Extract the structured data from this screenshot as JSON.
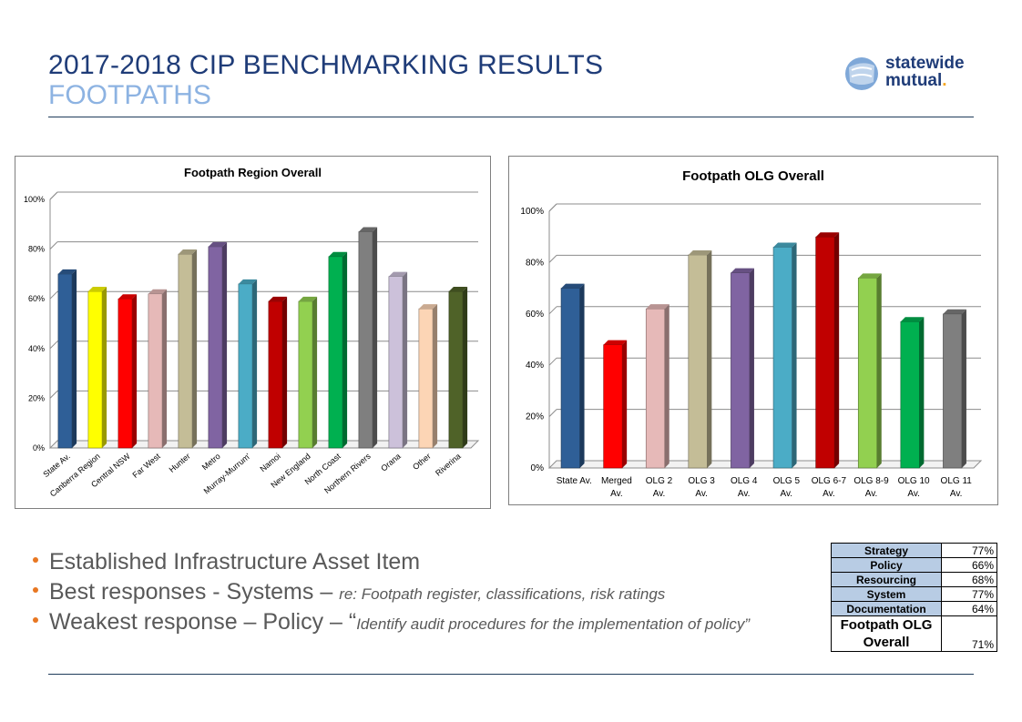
{
  "header": {
    "title_line1": "2017-2018 CIP BENCHMARKING RESULTS",
    "title_line2": "FOOTPATHS",
    "logo_line1": "statewide",
    "logo_line2": "mutual",
    "logo_dot": "."
  },
  "chart_data": [
    {
      "type": "bar",
      "title": "Footpath Region Overall",
      "categories": [
        "State Av.",
        "Canberra Region",
        "Central NSW",
        "Far West",
        "Hunter",
        "Metro",
        "Murray-Murrum'",
        "Namoi",
        "New England",
        "North Coast",
        "Northern Rivers",
        "Orana",
        "Other",
        "Riverina"
      ],
      "values": [
        70,
        63,
        60,
        62,
        78,
        81,
        66,
        59,
        59,
        77,
        87,
        69,
        56,
        63
      ],
      "colors": [
        "#2f5f97",
        "#ffff00",
        "#ff0000",
        "#e6b9b8",
        "#c4bd97",
        "#8064a2",
        "#4bacc6",
        "#c00000",
        "#92d050",
        "#00b050",
        "#7f7f7f",
        "#ccc1da",
        "#fcd5b5",
        "#4f6228"
      ],
      "ylim": [
        0,
        100
      ],
      "yticks": [
        "0%",
        "20%",
        "40%",
        "60%",
        "80%",
        "100%"
      ],
      "xlabel": "",
      "ylabel": "",
      "grid": true
    },
    {
      "type": "bar",
      "title": "Footpath OLG Overall",
      "categories": [
        "State Av.",
        "Merged Av.",
        "OLG 2 Av.",
        "OLG 3 Av.",
        "OLG 4 Av.",
        "OLG 5 Av.",
        "OLG 6-7 Av.",
        "OLG 8-9 Av.",
        "OLG 10 Av.",
        "OLG 11 Av."
      ],
      "values": [
        70,
        48,
        62,
        83,
        76,
        86,
        90,
        74,
        57,
        60
      ],
      "colors": [
        "#2f5f97",
        "#ff0000",
        "#e6b9b8",
        "#c4bd97",
        "#8064a2",
        "#4bacc6",
        "#c00000",
        "#92d050",
        "#00b050",
        "#7f7f7f"
      ],
      "ylim": [
        0,
        100
      ],
      "yticks": [
        "0%",
        "20%",
        "40%",
        "60%",
        "80%",
        "100%"
      ],
      "xlabel": "",
      "ylabel": "",
      "grid": true
    }
  ],
  "bullets": [
    {
      "main": "Established Infrastructure Asset Item",
      "note": ""
    },
    {
      "main": "Best responses - Systems – ",
      "note": "re: Footpath register, classifications, risk ratings"
    },
    {
      "main": "Weakest response – Policy – “",
      "note": "Identify audit procedures for the implementation of policy”"
    }
  ],
  "summary_table": {
    "rows": [
      {
        "label": "Strategy",
        "value": "77%"
      },
      {
        "label": "Policy",
        "value": "66%"
      },
      {
        "label": "Resourcing",
        "value": "68%"
      },
      {
        "label": "System",
        "value": "77%"
      },
      {
        "label": "Documentation",
        "value": "64%"
      }
    ],
    "overall_label": "Footpath OLG Overall",
    "overall_value": "71%"
  },
  "colors": {
    "title_dark": "#1f3c78",
    "title_light": "#8db3e2",
    "bullet": "#e87722",
    "table_header": "#b8cce4"
  }
}
